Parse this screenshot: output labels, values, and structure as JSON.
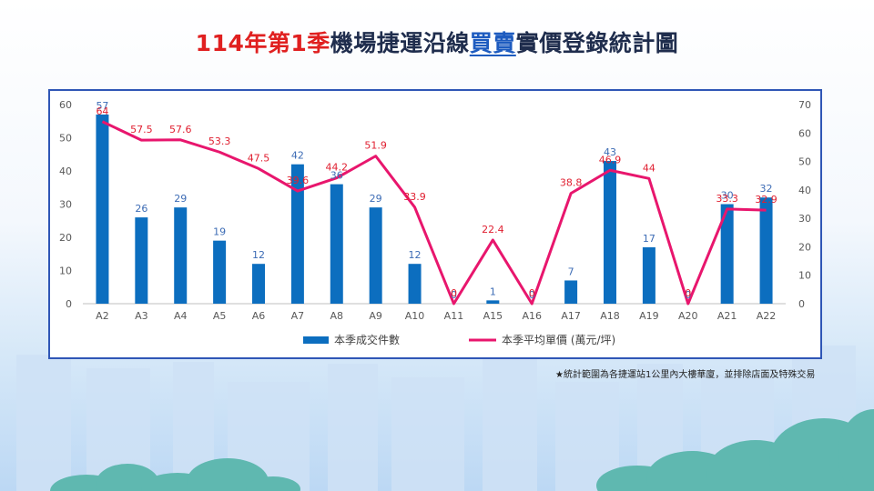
{
  "title": {
    "part_red": "114年第1季",
    "part_dark1": "機場捷運沿線",
    "part_blue": "買賣",
    "part_dark2": "實價登錄統計圖"
  },
  "footnote": "★統計範圍為各捷運站1公里內大樓華廈，並排除店面及特殊交易",
  "colors": {
    "bar": "#0c6ebf",
    "line": "#e8166d",
    "bar_label": "#3d6cb5",
    "line_label": "#e01f30",
    "frame": "#2f56b6"
  },
  "chart_data": {
    "type": "bar",
    "categories": [
      "A2",
      "A3",
      "A4",
      "A5",
      "A6",
      "A7",
      "A8",
      "A9",
      "A10",
      "A11",
      "A15",
      "A16",
      "A17",
      "A18",
      "A19",
      "A20",
      "A21",
      "A22"
    ],
    "series": [
      {
        "name": "本季成交件數",
        "type": "bar",
        "axis": "left",
        "values": [
          57,
          26,
          29,
          19,
          12,
          42,
          36,
          29,
          12,
          0,
          1,
          0,
          7,
          43,
          17,
          0,
          30,
          32
        ],
        "labels": [
          "57",
          "26",
          "29",
          "19",
          "12",
          "42",
          "36",
          "29",
          "12",
          "0",
          "1",
          "0",
          "7",
          "43",
          "17",
          "0",
          "30",
          "32"
        ]
      },
      {
        "name": "本季平均單價 (萬元/坪)",
        "type": "line",
        "axis": "right",
        "values": [
          64,
          57.5,
          57.6,
          53.3,
          47.5,
          39.6,
          44.2,
          51.9,
          33.9,
          0,
          22.4,
          0,
          38.8,
          46.9,
          44,
          0,
          33.3,
          32.9
        ],
        "labels": [
          "64",
          "57.5",
          "57.6",
          "53.3",
          "47.5",
          "39.6",
          "44.2",
          "51.9",
          "33.9",
          "0",
          "22.4",
          "0",
          "38.8",
          "46.9",
          "44",
          "0",
          "33.3",
          "32.9"
        ]
      }
    ],
    "y_left": {
      "min": 0,
      "max": 60,
      "ticks": [
        "0",
        "10",
        "20",
        "30",
        "40",
        "50",
        "60"
      ]
    },
    "y_right": {
      "min": 0,
      "max": 70,
      "ticks": [
        "0",
        "10",
        "20",
        "30",
        "40",
        "50",
        "60",
        "70"
      ]
    },
    "grid": false,
    "legend_position": "bottom"
  }
}
